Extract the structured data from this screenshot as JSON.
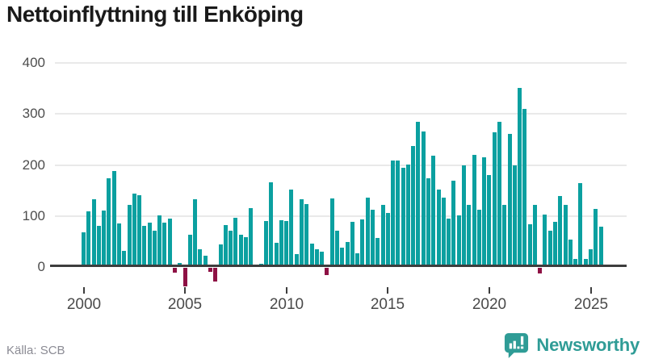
{
  "title": "Nettoinflyttning till Enköping",
  "source_label": "Källa: SCB",
  "branding": {
    "wordmark": "Newsworthy"
  },
  "colors": {
    "bar_positive": "#0ba0a0",
    "bar_negative": "#8e1144",
    "axis": "#3d3d3d",
    "grid": "#e9e9e9",
    "title_text": "#1a1a1a",
    "tick_text": "#4a4a4a",
    "source_text": "#8b8b94",
    "brand_teal": "#2f9c96",
    "background": "#ffffff"
  },
  "chart_data": {
    "type": "bar",
    "title": "Nettoinflyttning till Enköping",
    "categories": [
      "2000Q1",
      "2000Q2",
      "2000Q3",
      "2000Q4",
      "2001Q1",
      "2001Q2",
      "2001Q3",
      "2001Q4",
      "2002Q1",
      "2002Q2",
      "2002Q3",
      "2002Q4",
      "2003Q1",
      "2003Q2",
      "2003Q3",
      "2003Q4",
      "2004Q1",
      "2004Q2",
      "2004Q3",
      "2004Q4",
      "2005Q1",
      "2005Q2",
      "2005Q3",
      "2005Q4",
      "2006Q1",
      "2006Q2",
      "2006Q3",
      "2006Q4",
      "2007Q1",
      "2007Q2",
      "2007Q3",
      "2007Q4",
      "2008Q1",
      "2008Q2",
      "2008Q3",
      "2008Q4",
      "2009Q1",
      "2009Q2",
      "2009Q3",
      "2009Q4",
      "2010Q1",
      "2010Q2",
      "2010Q3",
      "2010Q4",
      "2011Q1",
      "2011Q2",
      "2011Q3",
      "2011Q4",
      "2012Q1",
      "2012Q2",
      "2012Q3",
      "2012Q4",
      "2013Q1",
      "2013Q2",
      "2013Q3",
      "2013Q4",
      "2014Q1",
      "2014Q2",
      "2014Q3",
      "2014Q4",
      "2015Q1",
      "2015Q2",
      "2015Q3",
      "2015Q4",
      "2016Q1",
      "2016Q2",
      "2016Q3",
      "2016Q4",
      "2017Q1",
      "2017Q2",
      "2017Q3",
      "2017Q4",
      "2018Q1",
      "2018Q2",
      "2018Q3",
      "2018Q4",
      "2019Q1",
      "2019Q2",
      "2019Q3",
      "2019Q4",
      "2020Q1",
      "2020Q2",
      "2020Q3",
      "2020Q4",
      "2021Q1",
      "2021Q2",
      "2021Q3",
      "2021Q4",
      "2022Q1",
      "2022Q2",
      "2022Q3",
      "2022Q4",
      "2023Q1",
      "2023Q2",
      "2023Q3",
      "2023Q4",
      "2024Q1",
      "2024Q2",
      "2024Q3",
      "2024Q4",
      "2025Q1",
      "2025Q2",
      "2025Q3"
    ],
    "values": [
      66,
      108,
      132,
      79,
      109,
      173,
      187,
      84,
      30,
      121,
      142,
      140,
      79,
      85,
      70,
      99,
      86,
      94,
      -9,
      7,
      -37,
      62,
      132,
      34,
      20,
      -8,
      -27,
      43,
      81,
      69,
      95,
      62,
      57,
      114,
      0,
      5,
      89,
      165,
      46,
      90,
      88,
      151,
      24,
      131,
      122,
      44,
      33,
      29,
      -14,
      133,
      69,
      36,
      47,
      87,
      25,
      92,
      135,
      110,
      55,
      120,
      104,
      207,
      207,
      193,
      200,
      235,
      283,
      265,
      172,
      217,
      150,
      135,
      94,
      168,
      100,
      198,
      121,
      218,
      110,
      213,
      179,
      263,
      283,
      120,
      260,
      197,
      349,
      308,
      82,
      120,
      -11,
      102,
      70,
      87,
      137,
      121,
      53,
      14,
      163,
      15,
      34,
      112,
      77
    ],
    "yticks": [
      0,
      100,
      200,
      300,
      400
    ],
    "xticks": [
      2000,
      2005,
      2010,
      2015,
      2020,
      2025
    ],
    "ylim": [
      -50,
      400
    ],
    "grid": "horizontal",
    "legend": "none",
    "bar_color_positive": "#0ba0a0",
    "bar_color_negative": "#8e1144"
  }
}
